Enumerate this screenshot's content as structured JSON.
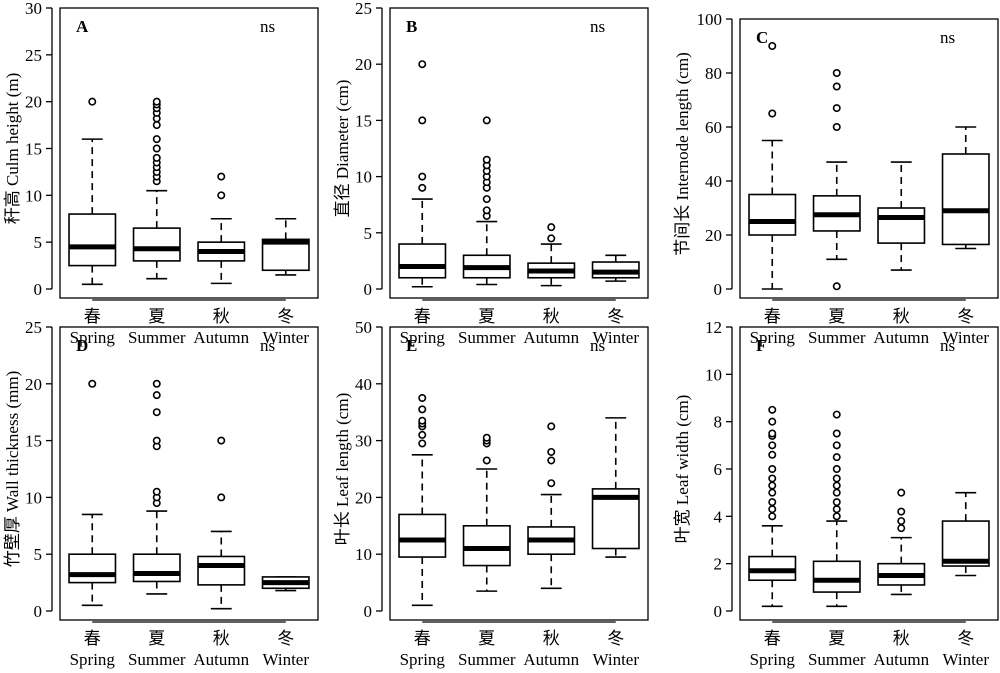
{
  "chart_data": [
    {
      "panel": "A",
      "type": "box",
      "annotation": "ns",
      "ylabel": "秆高 Culm height (m)",
      "ylim": [
        0,
        30
      ],
      "yticks": [
        0,
        5,
        10,
        15,
        20,
        25,
        30
      ],
      "categories": [
        "春",
        "夏",
        "秋",
        "冬"
      ],
      "categories_en": [
        "Spring",
        "Summer",
        "Autumn",
        "Winter"
      ],
      "boxes": [
        {
          "min": 0.5,
          "q1": 2.5,
          "median": 4.5,
          "q3": 8.0,
          "max": 16.0,
          "outliers": [
            20.0
          ]
        },
        {
          "min": 1.1,
          "q1": 3.0,
          "median": 4.3,
          "q3": 6.5,
          "max": 10.5,
          "outliers": [
            11.5,
            12.0,
            12.5,
            13.0,
            13.5,
            14.0,
            15.0,
            16.0,
            17.5,
            18.2,
            18.8,
            19.3,
            19.7,
            20.0
          ]
        },
        {
          "min": 0.6,
          "q1": 3.0,
          "median": 4.0,
          "q3": 5.0,
          "max": 7.5,
          "outliers": [
            10.0,
            12.0
          ]
        },
        {
          "min": 1.5,
          "q1": 2.0,
          "median": 5.0,
          "q3": 5.3,
          "max": 7.5,
          "outliers": []
        }
      ]
    },
    {
      "panel": "B",
      "type": "box",
      "annotation": "ns",
      "ylabel": "直径 Diameter (cm)",
      "ylim": [
        0,
        25
      ],
      "yticks": [
        0,
        5,
        10,
        15,
        20,
        25
      ],
      "categories": [
        "春",
        "夏",
        "秋",
        "冬"
      ],
      "categories_en": [
        "Spring",
        "Summer",
        "Autumn",
        "Winter"
      ],
      "boxes": [
        {
          "min": 0.2,
          "q1": 1.0,
          "median": 2.0,
          "q3": 4.0,
          "max": 8.0,
          "outliers": [
            9.0,
            10.0,
            15.0,
            20.0
          ]
        },
        {
          "min": 0.4,
          "q1": 1.0,
          "median": 1.9,
          "q3": 3.0,
          "max": 6.0,
          "outliers": [
            6.5,
            7.0,
            8.0,
            9.0,
            9.5,
            10.0,
            10.5,
            11.0,
            11.5,
            15.0
          ]
        },
        {
          "min": 0.3,
          "q1": 1.0,
          "median": 1.6,
          "q3": 2.3,
          "max": 4.0,
          "outliers": [
            4.5,
            5.5
          ]
        },
        {
          "min": 0.7,
          "q1": 1.0,
          "median": 1.5,
          "q3": 2.4,
          "max": 3.0,
          "outliers": []
        }
      ]
    },
    {
      "panel": "C",
      "type": "box",
      "annotation": "ns",
      "ylabel": "节间长 Internode length (cm)",
      "ylim": [
        0,
        100
      ],
      "yticks": [
        0,
        20,
        40,
        60,
        80,
        100
      ],
      "categories": [
        "春",
        "夏",
        "秋",
        "冬"
      ],
      "categories_en": [
        "Spring",
        "Summer",
        "Autumn",
        "Winter"
      ],
      "boxes": [
        {
          "min": 0,
          "q1": 20.0,
          "median": 25.0,
          "q3": 35.0,
          "max": 55.0,
          "outliers": [
            65.0,
            90.0
          ]
        },
        {
          "min": 11.0,
          "q1": 21.5,
          "median": 27.5,
          "q3": 34.5,
          "max": 47.0,
          "outliers": [
            1.0,
            60.0,
            67.0,
            75.0,
            80.0
          ]
        },
        {
          "min": 7.0,
          "q1": 17.0,
          "median": 26.5,
          "q3": 30.0,
          "max": 47.0,
          "outliers": []
        },
        {
          "min": 15.0,
          "q1": 16.5,
          "median": 29.0,
          "q3": 50.0,
          "max": 60.0,
          "outliers": []
        }
      ]
    },
    {
      "panel": "D",
      "type": "box",
      "annotation": "ns",
      "ylabel": "竹壁厚 Wall thickness (mm)",
      "ylim": [
        0,
        25
      ],
      "yticks": [
        0,
        5,
        10,
        15,
        20,
        25
      ],
      "categories": [
        "春",
        "夏",
        "秋",
        "冬"
      ],
      "categories_en": [
        "Spring",
        "Summer",
        "Autumn",
        "Winter"
      ],
      "boxes": [
        {
          "min": 0.5,
          "q1": 2.5,
          "median": 3.2,
          "q3": 5.0,
          "max": 8.5,
          "outliers": [
            20.0
          ]
        },
        {
          "min": 1.5,
          "q1": 2.6,
          "median": 3.3,
          "q3": 5.0,
          "max": 8.8,
          "outliers": [
            9.5,
            10.0,
            10.5,
            14.5,
            15.0,
            17.5,
            19.0,
            20.0
          ]
        },
        {
          "min": 0.2,
          "q1": 2.3,
          "median": 4.0,
          "q3": 4.8,
          "max": 7.0,
          "outliers": [
            10.0,
            15.0
          ]
        },
        {
          "min": 1.8,
          "q1": 2.0,
          "median": 2.5,
          "q3": 3.0,
          "max": 3.0,
          "outliers": []
        }
      ]
    },
    {
      "panel": "E",
      "type": "box",
      "annotation": "ns",
      "ylabel": "叶长 Leaf length (cm)",
      "ylim": [
        0,
        50
      ],
      "yticks": [
        0,
        10,
        20,
        30,
        40,
        50
      ],
      "categories": [
        "春",
        "夏",
        "秋",
        "冬"
      ],
      "categories_en": [
        "Spring",
        "Summer",
        "Autumn",
        "Winter"
      ],
      "boxes": [
        {
          "min": 1.0,
          "q1": 9.5,
          "median": 12.5,
          "q3": 17.0,
          "max": 27.5,
          "outliers": [
            29.5,
            31.0,
            32.5,
            33.0,
            33.5,
            35.5,
            37.5
          ]
        },
        {
          "min": 3.5,
          "q1": 8.0,
          "median": 11.0,
          "q3": 15.0,
          "max": 25.0,
          "outliers": [
            26.5,
            29.5,
            30.0,
            30.5
          ]
        },
        {
          "min": 4.0,
          "q1": 10.0,
          "median": 12.5,
          "q3": 14.8,
          "max": 20.5,
          "outliers": [
            22.5,
            26.5,
            28.0,
            32.5
          ]
        },
        {
          "min": 9.5,
          "q1": 11.0,
          "median": 20.0,
          "q3": 21.5,
          "max": 34.0,
          "outliers": []
        }
      ]
    },
    {
      "panel": "F",
      "type": "box",
      "annotation": "ns",
      "ylabel": "叶宽 Leaf width (cm)",
      "ylim": [
        0,
        12
      ],
      "yticks": [
        0,
        2,
        4,
        6,
        8,
        10,
        12
      ],
      "categories": [
        "春",
        "夏",
        "秋",
        "冬"
      ],
      "categories_en": [
        "Spring",
        "Summer",
        "Autumn",
        "Winter"
      ],
      "boxes": [
        {
          "min": 0.2,
          "q1": 1.3,
          "median": 1.7,
          "q3": 2.3,
          "max": 3.6,
          "outliers": [
            4.0,
            4.3,
            4.6,
            5.0,
            5.3,
            5.6,
            6.0,
            6.6,
            7.0,
            7.4,
            7.5,
            8.0,
            8.5
          ]
        },
        {
          "min": 0.2,
          "q1": 0.8,
          "median": 1.3,
          "q3": 2.1,
          "max": 3.8,
          "outliers": [
            4.0,
            4.3,
            4.6,
            5.0,
            5.3,
            5.6,
            6.0,
            6.5,
            7.0,
            7.5,
            8.3
          ]
        },
        {
          "min": 0.7,
          "q1": 1.1,
          "median": 1.5,
          "q3": 2.0,
          "max": 3.1,
          "outliers": [
            3.5,
            3.8,
            4.2,
            5.0
          ]
        },
        {
          "min": 1.5,
          "q1": 1.9,
          "median": 2.1,
          "q3": 3.8,
          "max": 5.0,
          "outliers": []
        }
      ]
    }
  ]
}
